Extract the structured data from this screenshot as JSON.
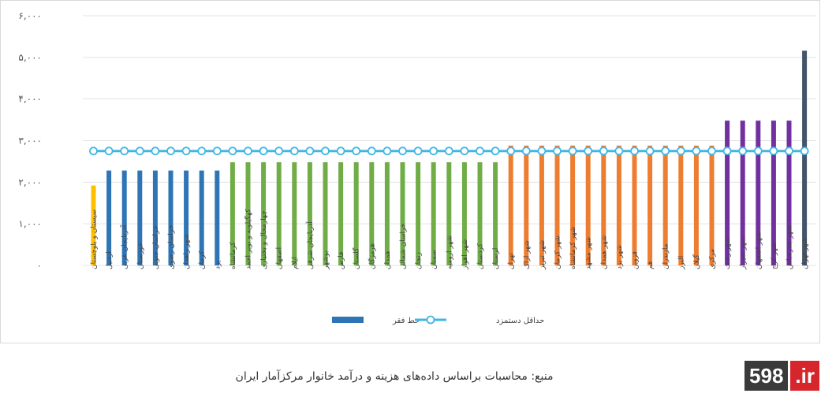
{
  "chart_data": {
    "type": "bar",
    "categories": [
      "سیستان و بلوچستان",
      "اردبیل",
      "آذربایجان غربی",
      "خوزستان",
      "خراسان جنوبی",
      "خراسان رضوی",
      "شهر زاهدان",
      "کرمان",
      "یزد",
      "کرمانشاه",
      "کهگیلویه و بویر احمد",
      "چهارمحال و بختیاری",
      "اصفهان",
      "ایلام",
      "آذربایجان شرقی",
      "بوشهر",
      "فارس",
      "گلستان",
      "هرمزگان",
      "همدان",
      "خراسان شمالی",
      "زنجان",
      "سمنان",
      "شهر ارومیه",
      "شهر اهواز",
      "کردستان",
      "لرستان",
      "تهران",
      "شهر اراک",
      "شهر تبریز",
      "شهر کرمان",
      "شهر کرمانشاه",
      "شهر مشهد",
      "شهر همدان",
      "شهر یزد",
      "قزوین",
      "قم",
      "مازندران",
      "البرز",
      "گیلان",
      "مرکزی",
      "شهر رشت",
      "شهر شیراز",
      "شهر اصفهان",
      "شهر کرج",
      "شهر بندرعباس",
      "شهر تهران"
    ],
    "values": [
      1920,
      2280,
      2280,
      2280,
      2280,
      2280,
      2280,
      2280,
      2280,
      2480,
      2480,
      2480,
      2480,
      2480,
      2480,
      2480,
      2480,
      2480,
      2480,
      2480,
      2480,
      2480,
      2480,
      2480,
      2480,
      2480,
      2480,
      2880,
      2880,
      2880,
      2880,
      2880,
      2880,
      2880,
      2880,
      2880,
      2880,
      2880,
      2880,
      2880,
      2880,
      3480,
      3480,
      3480,
      3480,
      3480,
      5160
    ],
    "bar_colors": [
      "#ffc000",
      "#2e75b6",
      "#2e75b6",
      "#2e75b6",
      "#2e75b6",
      "#2e75b6",
      "#2e75b6",
      "#2e75b6",
      "#2e75b6",
      "#70ad47",
      "#70ad47",
      "#70ad47",
      "#70ad47",
      "#70ad47",
      "#70ad47",
      "#70ad47",
      "#70ad47",
      "#70ad47",
      "#70ad47",
      "#70ad47",
      "#70ad47",
      "#70ad47",
      "#70ad47",
      "#70ad47",
      "#70ad47",
      "#70ad47",
      "#70ad47",
      "#ed7d31",
      "#ed7d31",
      "#ed7d31",
      "#ed7d31",
      "#ed7d31",
      "#ed7d31",
      "#ed7d31",
      "#ed7d31",
      "#ed7d31",
      "#ed7d31",
      "#ed7d31",
      "#ed7d31",
      "#ed7d31",
      "#ed7d31",
      "#7030a0",
      "#7030a0",
      "#7030a0",
      "#7030a0",
      "#7030a0",
      "#44546a"
    ],
    "line_series": {
      "name": "حداقل دستمزد",
      "value": 2750,
      "color": "#41b6e6"
    },
    "bar_series_name": "خط فقر",
    "legend_bar_color": "#2e75b6",
    "legend_position": "bottom",
    "ylim": [
      0,
      6000
    ],
    "yticks": [
      0,
      1000,
      2000,
      3000,
      4000,
      5000,
      6000
    ],
    "ytick_labels": [
      "۰",
      "۱,۰۰۰",
      "۲,۰۰۰",
      "۳,۰۰۰",
      "۴,۰۰۰",
      "۵,۰۰۰",
      "۶,۰۰۰"
    ],
    "grid": true,
    "title": "",
    "xlabel": "",
    "ylabel": ""
  },
  "footer": {
    "source": "منبع: محاسبات براساس داده‌های هزینه و درآمد خانوار مرکزآمار ایران",
    "logo_number": "598",
    "logo_tld": ".ir"
  }
}
